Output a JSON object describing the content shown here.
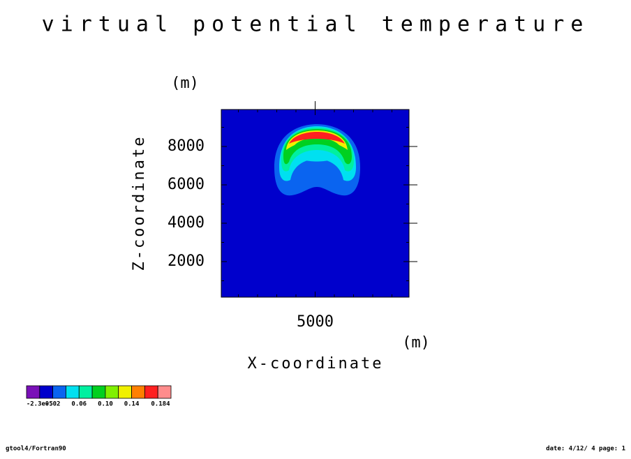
{
  "chart_data": {
    "type": "contour",
    "title": "virtual potential temperature",
    "xlabel": "X-coordinate",
    "xunit": "(m)",
    "ylabel": "Z-coordinate",
    "yunit": "(m)",
    "xlim": [
      109,
      9891
    ],
    "ylim": [
      145,
      9927
    ],
    "xticks": [
      5000
    ],
    "yticks": [
      2000,
      4000,
      6000,
      8000
    ],
    "xminorticks": [
      1000,
      2000,
      3000,
      4000,
      6000,
      7000,
      8000,
      9000
    ],
    "yminorticks": [
      1000,
      3000,
      5000,
      7000,
      9000
    ],
    "colorbar": {
      "colors": [
        "#7a10b8",
        "#0000cc",
        "#0a64f0",
        "#00e0f0",
        "#00f0a0",
        "#00d020",
        "#80f000",
        "#f0f000",
        "#ff8000",
        "#ff2020",
        "#ff8c8c"
      ],
      "clim": [
        -0.02,
        0.2
      ],
      "ticks": [
        {
          "value": -2.3e-05,
          "label": "-2.3e-5"
        },
        0.02,
        0.06,
        {
          "value": 0.1,
          "label": "0.10"
        },
        0.14,
        0.184
      ]
    },
    "footer_left": "gtool4/Fortran90",
    "footer_right": "date: 4/12/ 4 page: 1"
  }
}
